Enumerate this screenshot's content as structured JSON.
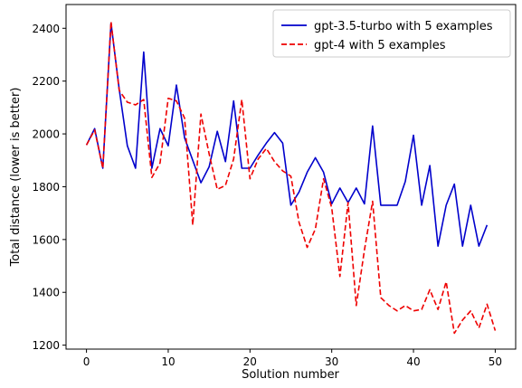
{
  "chart_data": {
    "type": "line",
    "title": "",
    "xlabel": "Solution number",
    "ylabel": "Total distance (lower is better)",
    "xlim": [
      -2.5,
      52.5
    ],
    "ylim": [
      1185,
      2490
    ],
    "xticks": [
      0,
      10,
      20,
      30,
      40,
      50
    ],
    "yticks": [
      1200,
      1400,
      1600,
      1800,
      2000,
      2200,
      2400
    ],
    "grid": false,
    "legend_position": "top-right",
    "series": [
      {
        "name": "gpt-3.5-turbo with 5 examples",
        "color": "#0000cc",
        "style": "solid",
        "x": [
          0,
          1,
          2,
          3,
          4,
          5,
          6,
          7,
          8,
          9,
          10,
          11,
          12,
          13,
          14,
          15,
          16,
          17,
          18,
          19,
          20,
          21,
          22,
          23,
          24,
          25,
          26,
          27,
          28,
          29,
          30,
          31,
          32,
          33,
          34,
          35,
          36,
          37,
          38,
          39,
          40,
          41,
          42,
          43,
          44,
          45,
          46,
          47,
          48,
          49
        ],
        "y": [
          1958,
          2020,
          1870,
          2420,
          2170,
          1955,
          1870,
          2310,
          1870,
          2020,
          1955,
          2185,
          1985,
          1900,
          1815,
          1875,
          2010,
          1895,
          2125,
          1870,
          1870,
          1920,
          1965,
          2005,
          1965,
          1730,
          1780,
          1855,
          1910,
          1855,
          1735,
          1795,
          1740,
          1795,
          1735,
          2030,
          1730,
          1730,
          1730,
          1820,
          1995,
          1730,
          1880,
          1575,
          1730,
          1810,
          1575,
          1730,
          1575,
          1655
        ]
      },
      {
        "name": "gpt-4 with 5 examples",
        "color": "#ee0000",
        "style": "dashed",
        "x": [
          0,
          1,
          2,
          3,
          4,
          5,
          6,
          7,
          8,
          9,
          10,
          11,
          12,
          13,
          14,
          15,
          16,
          17,
          18,
          19,
          20,
          21,
          22,
          23,
          24,
          25,
          26,
          27,
          28,
          29,
          30,
          31,
          32,
          33,
          34,
          35,
          36,
          37,
          38,
          39,
          40,
          41,
          42,
          43,
          44,
          45,
          46,
          47,
          48,
          49,
          50
        ],
        "y": [
          1958,
          2015,
          1870,
          2425,
          2165,
          2120,
          2110,
          2130,
          1835,
          1890,
          2135,
          2125,
          2060,
          1655,
          2075,
          1925,
          1790,
          1805,
          1905,
          2130,
          1830,
          1905,
          1945,
          1895,
          1860,
          1840,
          1665,
          1570,
          1640,
          1830,
          1720,
          1460,
          1740,
          1350,
          1560,
          1745,
          1380,
          1350,
          1330,
          1350,
          1330,
          1335,
          1410,
          1335,
          1440,
          1245,
          1295,
          1330,
          1265,
          1355,
          1255
        ]
      }
    ]
  }
}
